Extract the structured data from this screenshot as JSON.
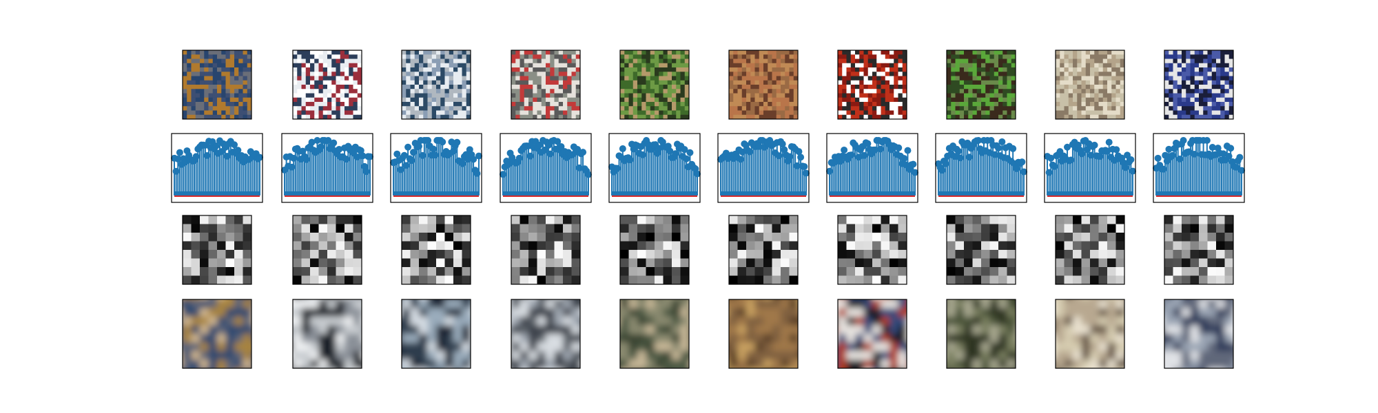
{
  "figure": {
    "columns": 10,
    "rows": [
      {
        "name": "input-images",
        "kind": "image"
      },
      {
        "name": "latent-stem-plots",
        "kind": "stem-plot"
      },
      {
        "name": "latent-code-grids",
        "kind": "grayscale-grid"
      },
      {
        "name": "reconstructed-images",
        "kind": "blurry-image"
      }
    ]
  },
  "colors": {
    "stem": "#1f77b4",
    "baseline": "#d62728",
    "frame": "#000000",
    "background": "#ffffff"
  },
  "samples": [
    {
      "index": 0,
      "palette": [
        "#b07a2e",
        "#6a6e78",
        "#3d4f73",
        "#28456e"
      ],
      "recon_palette": [
        "#a8843c",
        "#d2b890",
        "#5a6478",
        "#2e4a70"
      ]
    },
    {
      "index": 1,
      "palette": [
        "#e9edf1",
        "#ffffff",
        "#2c3e5a",
        "#9b2f3c"
      ],
      "recon_palette": [
        "#eef0f2",
        "#c8ccd0",
        "#1e222a",
        "#8a9098"
      ]
    },
    {
      "index": 2,
      "palette": [
        "#8a9db4",
        "#e7ecf1",
        "#2c4a66",
        "#b0b8c0"
      ],
      "recon_palette": [
        "#9aacbc",
        "#d6dde4",
        "#2f3e4e",
        "#1a2432"
      ]
    },
    {
      "index": 3,
      "palette": [
        "#e6e2dc",
        "#c23a3a",
        "#5a5a5a",
        "#8a8f86"
      ],
      "recon_palette": [
        "#d8dde2",
        "#a0a8b2",
        "#5a6068",
        "#3a4048"
      ]
    },
    {
      "index": 4,
      "palette": [
        "#3e6a2a",
        "#6d9a45",
        "#b59a6a",
        "#2a3a1e"
      ],
      "recon_palette": [
        "#4e5a44",
        "#8a8a70",
        "#c8b898",
        "#3a4430"
      ]
    },
    {
      "index": 5,
      "palette": [
        "#9a6a44",
        "#c08a55",
        "#6a3e2a",
        "#b9754a"
      ],
      "recon_palette": [
        "#a07848",
        "#c8a060",
        "#5a4028",
        "#806040"
      ]
    },
    {
      "index": 6,
      "palette": [
        "#c0301a",
        "#ffffff",
        "#2a2a2a",
        "#8a1a12"
      ],
      "recon_palette": [
        "#b03a1e",
        "#e8e4e0",
        "#1e1e22",
        "#304a7a"
      ]
    },
    {
      "index": 7,
      "palette": [
        "#2f4a22",
        "#5aa83a",
        "#3a2a1c",
        "#6a8a4a"
      ],
      "recon_palette": [
        "#4a5238",
        "#7a8060",
        "#a8a890",
        "#2e3424"
      ]
    },
    {
      "index": 8,
      "palette": [
        "#c8c0a8",
        "#e4dcc8",
        "#8a7a66",
        "#b4a48a"
      ],
      "recon_palette": [
        "#d6ccb0",
        "#eae2d0",
        "#6a5a48",
        "#b8a890"
      ]
    },
    {
      "index": 9,
      "palette": [
        "#e6e6e6",
        "#2a3a8a",
        "#4a5aa8",
        "#1a1e3a"
      ],
      "recon_palette": [
        "#e0e2e6",
        "#9aa4b4",
        "#2e3a5a",
        "#60687a"
      ]
    }
  ]
}
